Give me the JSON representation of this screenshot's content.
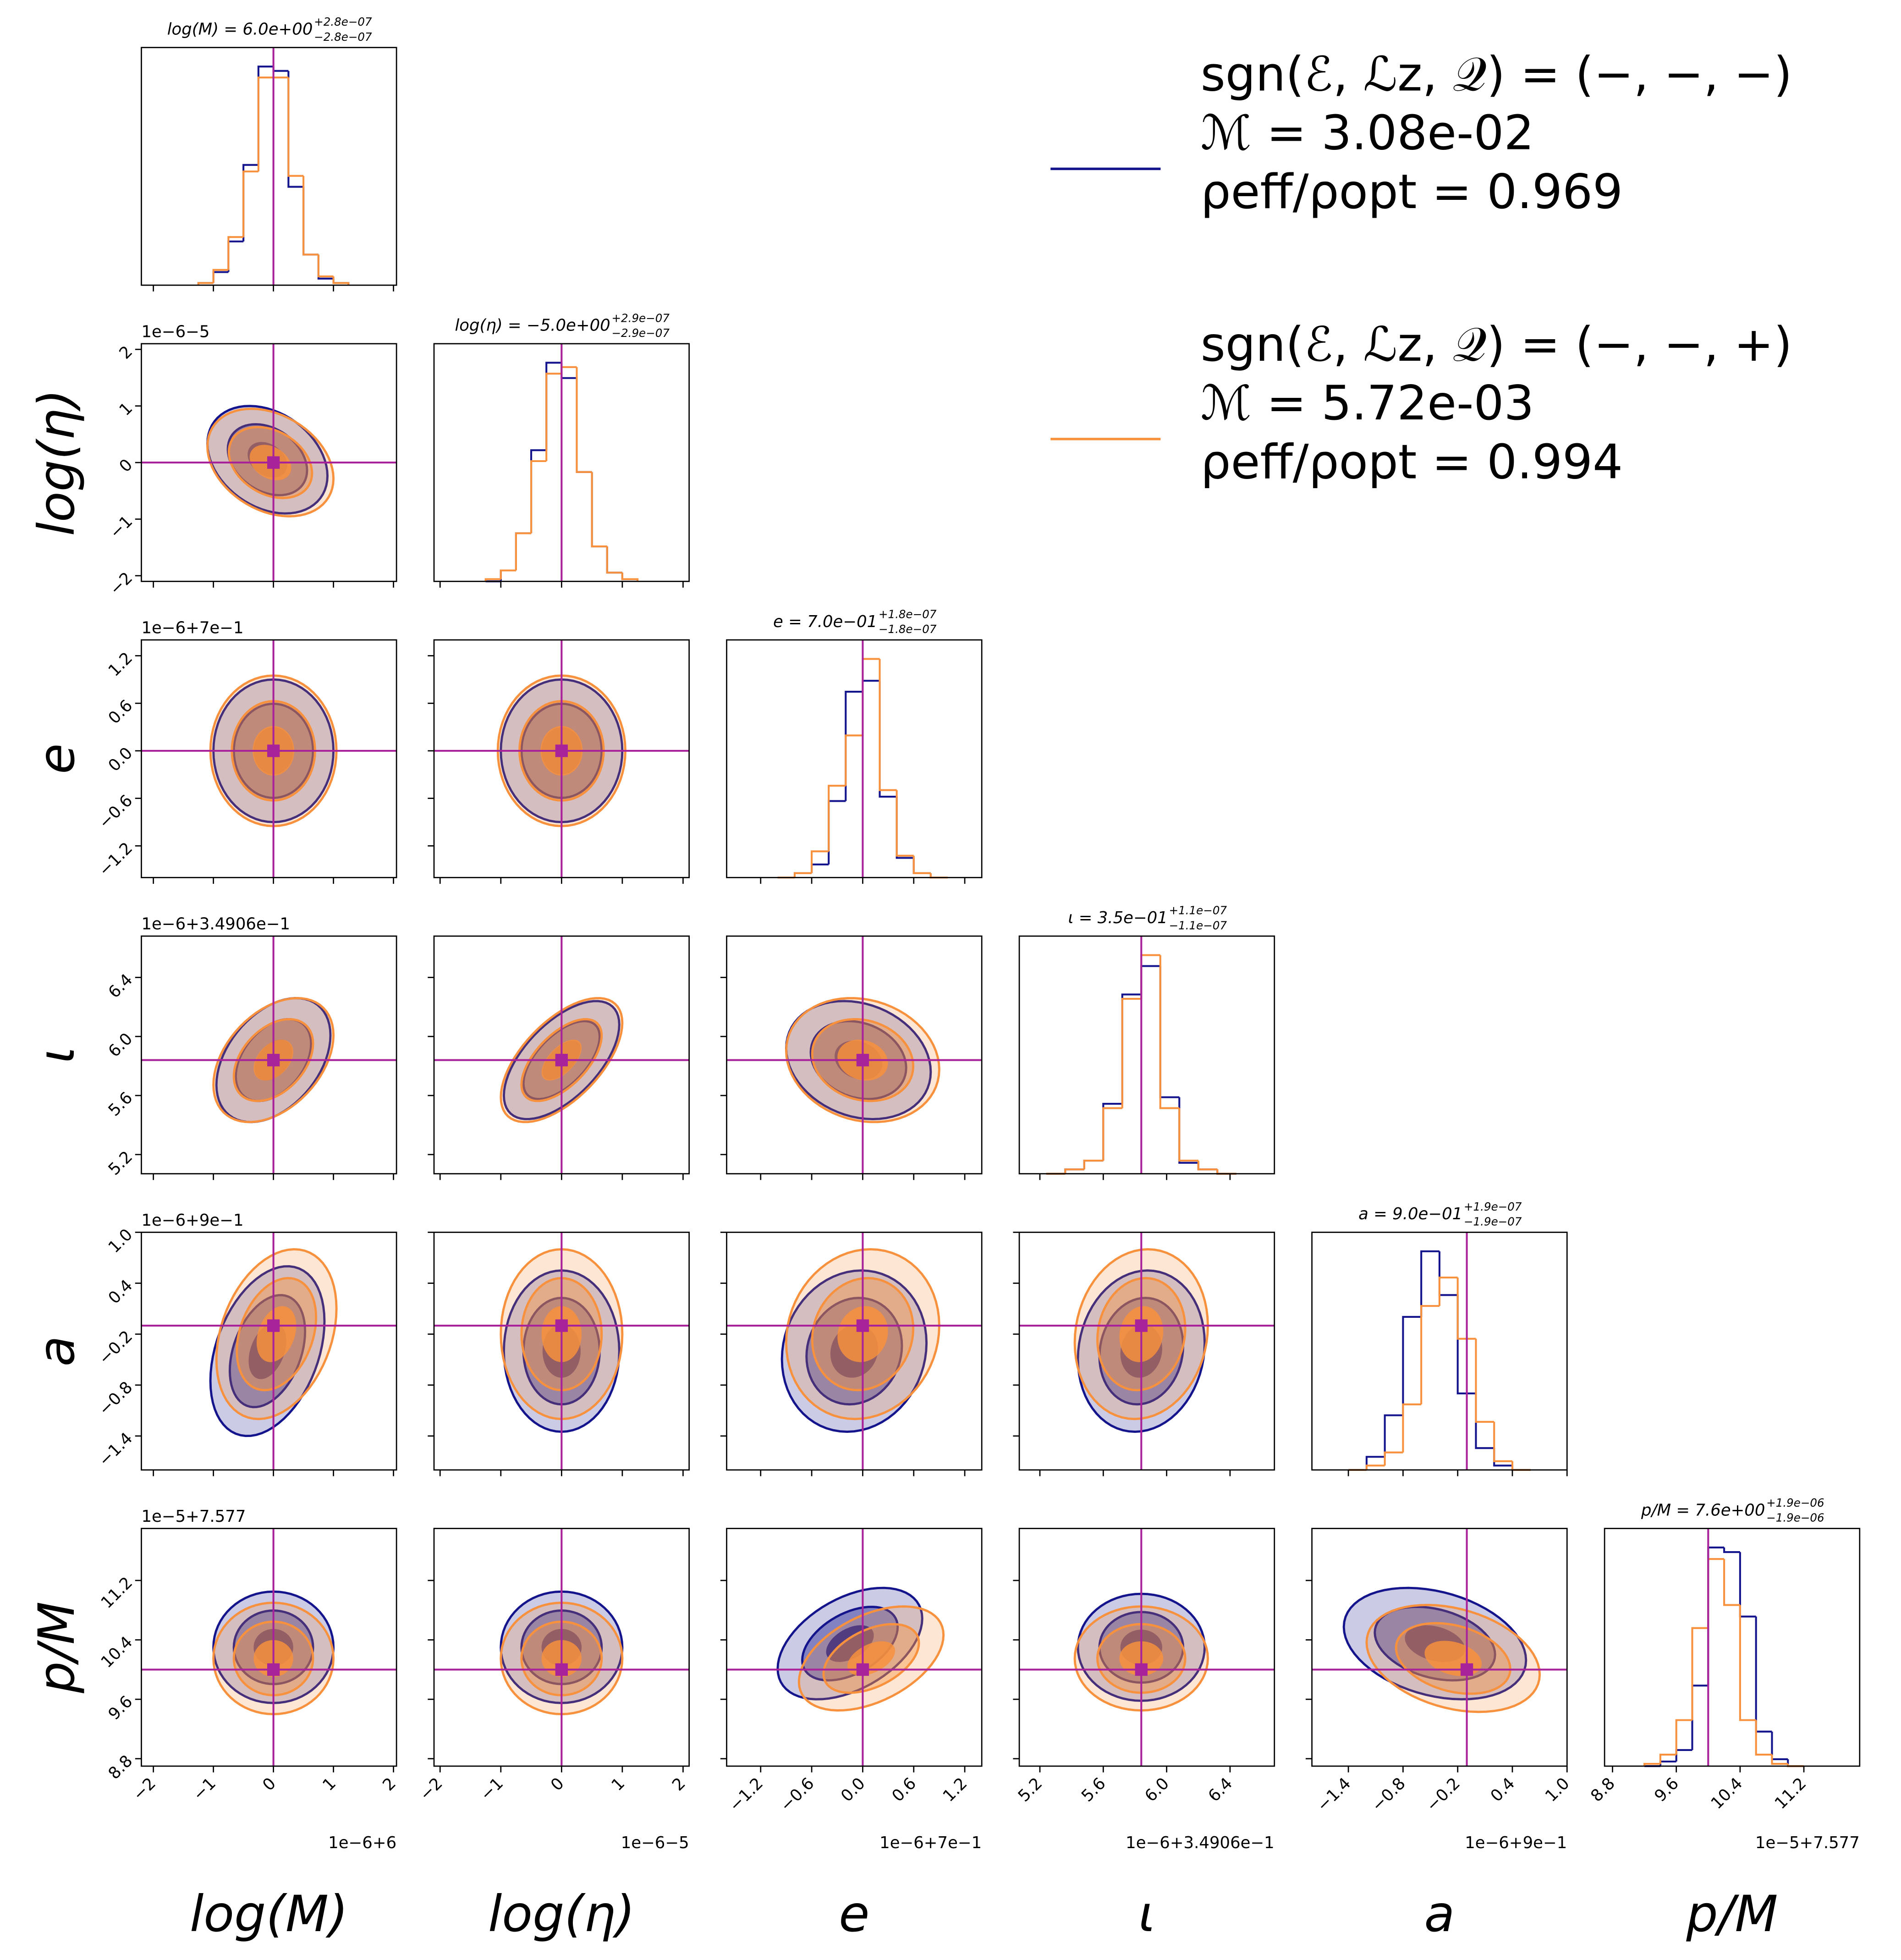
{
  "chart_data": {
    "type": "corner",
    "truth_color": "#a8239a",
    "series": [
      {
        "name": "sgn(ℰ, ℒz, 𝒬) = (−, −, −)",
        "details": [
          "ℳ = 3.08e-02",
          "ρeff/ρopt = 0.969"
        ],
        "color": "#14148c"
      },
      {
        "name": "sgn(ℰ, ℒz, 𝒬) = (−, −, +)",
        "details": [
          "ℳ = 5.72e-03",
          "ρeff/ρopt = 0.994"
        ],
        "color": "#f7913d"
      }
    ],
    "params": [
      {
        "label": "log(M)",
        "title": "log(M) = 6.0e+00",
        "plus": "+2.8e−07",
        "minus": "−2.8e−07",
        "lim": [
          -2.2,
          2.05
        ],
        "ticks": [
          {
            "value": -2,
            "label": "−2"
          },
          {
            "value": -1,
            "label": "−1"
          },
          0,
          1,
          2
        ],
        "offset": "1e−6+6",
        "truth": 0,
        "hist": {
          "bins": [
            -1.25,
            -1.0,
            -0.75,
            -0.5,
            -0.25,
            0,
            0.25,
            0.5,
            0.75,
            1.0,
            1.25
          ],
          "values": [
            [
              0.01,
              0.06,
              0.2,
              0.55,
              1.0,
              0.98,
              0.45,
              0.14,
              0.03,
              0.01
            ],
            [
              0.01,
              0.07,
              0.22,
              0.52,
              0.95,
              0.95,
              0.5,
              0.14,
              0.04,
              0.01
            ]
          ]
        },
        "contours": []
      },
      {
        "label": "log(η)",
        "title": "log(η) = −5.0e+00",
        "plus": "+2.9e−07",
        "minus": "−2.9e−07",
        "lim": [
          -2.1,
          2.1
        ],
        "ticks": [
          {
            "value": -2,
            "label": "−2"
          },
          {
            "value": -1,
            "label": "−1"
          },
          0,
          1,
          2
        ],
        "offset": "1e−6−5",
        "truth": 0,
        "hist": {
          "bins": [
            -1.25,
            -1.0,
            -0.75,
            -0.5,
            -0.25,
            0,
            0.25,
            0.5,
            0.75,
            1.0,
            1.25
          ],
          "values": [
            [
              0.0,
              0.05,
              0.22,
              0.6,
              1.0,
              0.93,
              0.5,
              0.16,
              0.04,
              0.01
            ],
            [
              0.01,
              0.05,
              0.22,
              0.55,
              0.95,
              0.98,
              0.5,
              0.16,
              0.04,
              0.01
            ]
          ]
        },
        "contours": [
          [
            [
              -0.1,
              0.05,
              1.0,
              0.95,
              -0.3
            ],
            [
              -0.05,
              0.0,
              1.05,
              0.95,
              -0.3
            ]
          ]
        ]
      },
      {
        "label": "e",
        "title": "e = 7.0e−01",
        "plus": "+1.8e−07",
        "minus": "−1.8e−07",
        "lim": [
          -1.6,
          1.4
        ],
        "ticks": [
          {
            "value": -1.2,
            "label": "−1.2"
          },
          {
            "value": -0.6,
            "label": "−0.6"
          },
          {
            "value": 0,
            "label": "0.0"
          },
          0.6,
          1.2
        ],
        "offset": "1e−6+7e−1",
        "truth": 0,
        "hist": {
          "bins": [
            -1.0,
            -0.8,
            -0.6,
            -0.4,
            -0.2,
            0,
            0.2,
            0.4,
            0.6,
            0.8,
            1.0
          ],
          "values": [
            [
              0.0,
              0.02,
              0.06,
              0.35,
              0.85,
              0.9,
              0.37,
              0.09,
              0.02,
              0.0
            ],
            [
              0.0,
              0.02,
              0.12,
              0.42,
              0.65,
              1.0,
              0.4,
              0.1,
              0.02,
              0.0
            ]
          ]
        },
        "contours": [
          [
            [
              0,
              0,
              1.0,
              0.9,
              0
            ],
            [
              0,
              0,
              1.05,
              0.95,
              0
            ]
          ],
          [
            [
              0,
              0,
              1.0,
              0.9,
              0
            ],
            [
              0,
              0,
              1.05,
              0.95,
              0
            ]
          ]
        ]
      },
      {
        "label": "ι",
        "title": "ι = 3.5e−01",
        "plus": "+1.1e−07",
        "minus": "−1.1e−07",
        "lim": [
          5.07,
          6.68
        ],
        "ticks": [
          5.2,
          5.6,
          {
            "value": 6.0,
            "label": "6.0"
          },
          6.4
        ],
        "offset": "1e−6+3.4906e−1",
        "truth": 5.84,
        "hist": {
          "bins": [
            5.24,
            5.36,
            5.48,
            5.6,
            5.72,
            5.84,
            5.96,
            6.08,
            6.2,
            6.32,
            6.44
          ],
          "values": [
            [
              0.0,
              0.02,
              0.06,
              0.32,
              0.82,
              0.95,
              0.35,
              0.05,
              0.02,
              0.0
            ],
            [
              0.0,
              0.02,
              0.06,
              0.3,
              0.8,
              1.0,
              0.3,
              0.06,
              0.02,
              0.0
            ]
          ]
        },
        "contours": [
          [
            [
              0,
              5.84,
              0.95,
              0.42,
              0.4
            ],
            [
              0,
              5.84,
              1.0,
              0.42,
              0.4
            ]
          ],
          [
            [
              0,
              5.84,
              0.95,
              0.4,
              0.6
            ],
            [
              0,
              5.84,
              1.0,
              0.42,
              0.6
            ]
          ],
          [
            [
              -0.05,
              5.84,
              0.85,
              0.4,
              -0.2
            ],
            [
              0,
              5.84,
              0.9,
              0.42,
              -0.15
            ]
          ]
        ]
      },
      {
        "label": "a",
        "title": "a = 9.0e−01",
        "plus": "+1.9e−07",
        "minus": "−1.9e−07",
        "lim": [
          -1.8,
          1.0
        ],
        "ticks": [
          {
            "value": -1.4,
            "label": "−1.4"
          },
          {
            "value": -0.8,
            "label": "−0.8"
          },
          {
            "value": -0.2,
            "label": "−0.2"
          },
          0.4,
          {
            "value": 1.0,
            "label": "1.0"
          }
        ],
        "offset": "1e−6+9e−1",
        "truth": -0.1,
        "hist": {
          "bins": [
            -1.4,
            -1.2,
            -1.0,
            -0.8,
            -0.6,
            -0.4,
            -0.2,
            0,
            0.2,
            0.4,
            0.6
          ],
          "values": [
            [
              0.0,
              0.06,
              0.25,
              0.7,
              1.0,
              0.8,
              0.35,
              0.1,
              0.02,
              0.0
            ],
            [
              0.0,
              0.02,
              0.08,
              0.3,
              0.75,
              0.88,
              0.6,
              0.22,
              0.04,
              0.0
            ]
          ]
        },
        "contours": [
          [
            [
              -0.1,
              -0.4,
              0.95,
              1.0,
              0.35
            ],
            [
              0.05,
              -0.2,
              1.0,
              1.0,
              0.3
            ]
          ],
          [
            [
              0,
              -0.4,
              0.95,
              0.95,
              0
            ],
            [
              0,
              -0.2,
              1.0,
              1.0,
              0
            ]
          ],
          [
            [
              -0.1,
              -0.4,
              0.85,
              0.95,
              0.1
            ],
            [
              0,
              -0.2,
              0.9,
              1.0,
              0.1
            ]
          ],
          [
            [
              5.84,
              -0.4,
              0.4,
              0.95,
              0.1
            ],
            [
              5.84,
              -0.2,
              0.42,
              1.0,
              0.1
            ]
          ]
        ]
      },
      {
        "label": "p/M",
        "title": "p/M = 7.6e+00",
        "plus": "+1.9e−06",
        "minus": "−1.9e−06",
        "lim": [
          8.7,
          11.9
        ],
        "ticks": [
          8.8,
          9.6,
          10.4,
          11.2
        ],
        "offset": "1e−5+7.577",
        "truth": 10.0,
        "hist": {
          "bins": [
            9.2,
            9.4,
            9.6,
            9.8,
            10.0,
            10.2,
            10.4,
            10.6,
            10.8,
            11.0,
            11.2
          ],
          "values": [
            [
              0.0,
              0.02,
              0.07,
              0.35,
              0.95,
              0.93,
              0.65,
              0.15,
              0.03,
              0.0
            ],
            [
              0.01,
              0.05,
              0.2,
              0.6,
              0.9,
              0.7,
              0.2,
              0.05,
              0.01,
              0.0
            ]
          ]
        },
        "contours": [
          [
            [
              0,
              10.3,
              1.0,
              0.75,
              0
            ],
            [
              0,
              10.15,
              1.0,
              0.75,
              0
            ]
          ],
          [
            [
              0,
              10.3,
              1.0,
              0.75,
              0
            ],
            [
              0,
              10.15,
              1.0,
              0.75,
              0
            ]
          ],
          [
            [
              -0.15,
              10.35,
              0.85,
              0.75,
              0.45
            ],
            [
              0.1,
              10.15,
              0.85,
              0.7,
              0.45
            ]
          ],
          [
            [
              5.84,
              10.3,
              0.4,
              0.72,
              0
            ],
            [
              5.84,
              10.15,
              0.42,
              0.7,
              0
            ]
          ],
          [
            [
              -0.45,
              10.35,
              1.0,
              0.75,
              -0.3
            ],
            [
              -0.25,
              10.15,
              0.95,
              0.72,
              -0.3
            ]
          ]
        ]
      }
    ]
  }
}
